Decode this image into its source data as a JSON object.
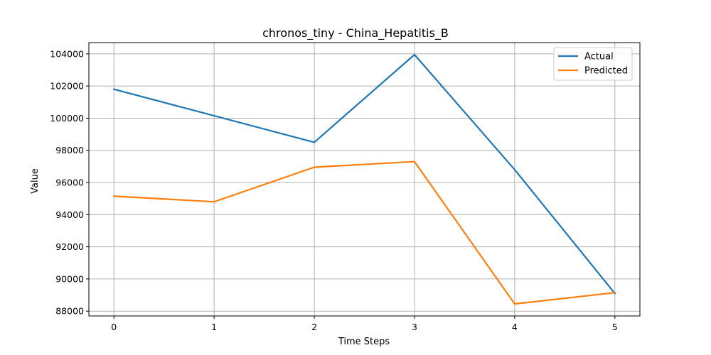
{
  "chart_data": {
    "type": "line",
    "title": "chronos_tiny - China_Hepatitis_B",
    "xlabel": "Time Steps",
    "ylabel": "Value",
    "x": [
      0,
      1,
      2,
      3,
      4,
      5
    ],
    "xticks": [
      "0",
      "1",
      "2",
      "3",
      "4",
      "5"
    ],
    "yticks": [
      "88000",
      "90000",
      "92000",
      "94000",
      "96000",
      "98000",
      "100000",
      "102000",
      "104000"
    ],
    "xlim": [
      -0.25,
      5.25
    ],
    "ylim": [
      87700,
      104700
    ],
    "grid": true,
    "legend_position": "top-right",
    "series": [
      {
        "name": "Actual",
        "color": "#1f77b4",
        "values": [
          101800,
          100150,
          98500,
          103950,
          96800,
          89100
        ]
      },
      {
        "name": "Predicted",
        "color": "#ff7f0e",
        "values": [
          95150,
          94800,
          96950,
          97300,
          88450,
          89150
        ]
      }
    ]
  }
}
